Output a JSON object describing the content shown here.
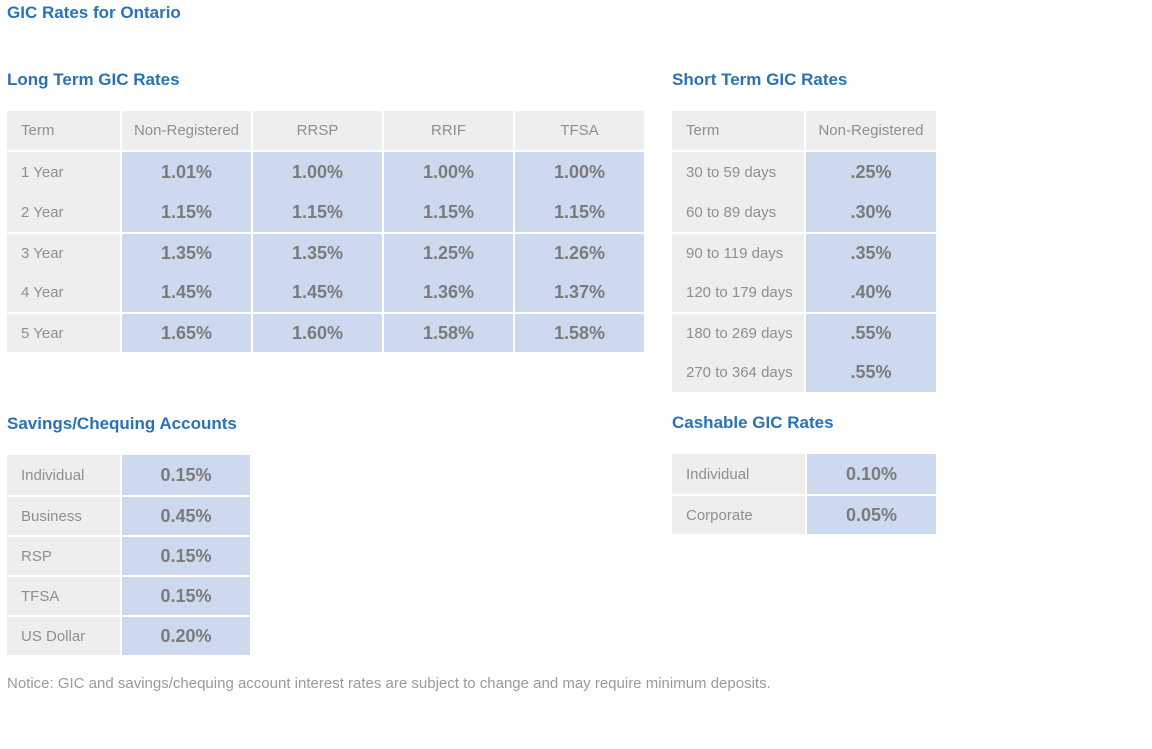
{
  "page": {
    "title": "GIC Rates for Ontario",
    "notice": "Notice: GIC and savings/chequing account interest rates are subject to change and may require minimum deposits."
  },
  "colors": {
    "heading_blue": "#2a72b5",
    "header_bg": "#eeeeee",
    "label_bg": "#eeeeee",
    "value_bg": "#ccd9ee",
    "label_text": "#8f8f8f",
    "value_text": "#7b7b7b",
    "notice_text": "#9a9a9a"
  },
  "tables": [
    {
      "id": "long-term",
      "heading": "Long Term GIC Rates",
      "columns": [
        "Term",
        "Non-Registered",
        "RRSP",
        "RRIF",
        "TFSA"
      ],
      "row_group_size": 2,
      "rows": [
        {
          "label": "1 Year",
          "values": [
            "1.01%",
            "1.00%",
            "1.00%",
            "1.00%"
          ]
        },
        {
          "label": "2 Year",
          "values": [
            "1.15%",
            "1.15%",
            "1.15%",
            "1.15%"
          ]
        },
        {
          "label": "3 Year",
          "values": [
            "1.35%",
            "1.35%",
            "1.25%",
            "1.26%"
          ]
        },
        {
          "label": "4 Year",
          "values": [
            "1.45%",
            "1.45%",
            "1.36%",
            "1.37%"
          ]
        },
        {
          "label": "5 Year",
          "values": [
            "1.65%",
            "1.60%",
            "1.58%",
            "1.58%"
          ]
        }
      ]
    },
    {
      "id": "short-term",
      "heading": "Short Term GIC Rates",
      "columns": [
        "Term",
        "Non-Registered"
      ],
      "row_group_size": 2,
      "rows": [
        {
          "label": "30 to 59 days",
          "values": [
            ".25%"
          ]
        },
        {
          "label": "60 to 89 days",
          "values": [
            ".30%"
          ]
        },
        {
          "label": "90 to 119 days",
          "values": [
            ".35%"
          ]
        },
        {
          "label": "120 to 179 days",
          "values": [
            ".40%"
          ]
        },
        {
          "label": "180 to 269 days",
          "values": [
            ".55%"
          ]
        },
        {
          "label": "270 to 364 days",
          "values": [
            ".55%"
          ]
        }
      ]
    },
    {
      "id": "savings-chequing",
      "heading": "Savings/Chequing Accounts",
      "columns": [],
      "row_group_size": 1,
      "rows": [
        {
          "label": "Individual",
          "values": [
            "0.15%"
          ]
        },
        {
          "label": "Business",
          "values": [
            "0.45%"
          ]
        },
        {
          "label": "RSP",
          "values": [
            "0.15%"
          ]
        },
        {
          "label": "TFSA",
          "values": [
            "0.15%"
          ]
        },
        {
          "label": "US Dollar",
          "values": [
            "0.20%"
          ]
        }
      ]
    },
    {
      "id": "cashable",
      "heading": "Cashable GIC Rates",
      "columns": [],
      "row_group_size": 1,
      "rows": [
        {
          "label": "Individual",
          "values": [
            "0.10%"
          ]
        },
        {
          "label": "Corporate",
          "values": [
            "0.05%"
          ]
        }
      ]
    }
  ]
}
